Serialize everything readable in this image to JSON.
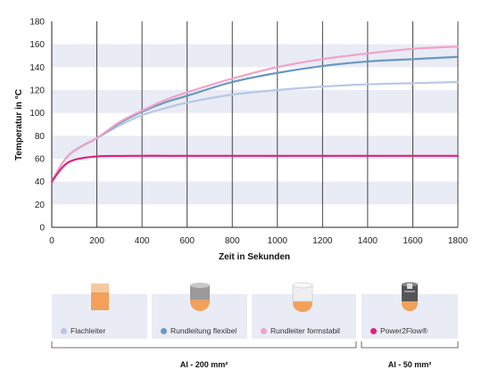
{
  "chart_data": {
    "type": "line",
    "xlabel": "Zeit in Sekunden",
    "ylabel": "Temperatur in °C",
    "xlim": [
      0,
      1800
    ],
    "ylim": [
      0,
      180
    ],
    "xticks": [
      0,
      200,
      400,
      600,
      800,
      1000,
      1200,
      1400,
      1600,
      1800
    ],
    "yticks": [
      0,
      20,
      40,
      60,
      80,
      100,
      120,
      140,
      160,
      180
    ],
    "grid": "vertical lines, horizontal bands",
    "x": [
      0,
      50,
      100,
      200,
      300,
      400,
      500,
      600,
      800,
      1000,
      1200,
      1400,
      1600,
      1800
    ],
    "series": [
      {
        "name": "Flachleiter",
        "color": "#b7c8e4",
        "values": [
          40,
          57,
          67,
          78,
          89,
          98,
          104,
          109,
          116,
          120,
          123,
          125,
          126,
          127
        ]
      },
      {
        "name": "Rundleitung flexibel",
        "color": "#6a98c0",
        "values": [
          40,
          57,
          67,
          78,
          91,
          101,
          109,
          115,
          127,
          135,
          141,
          145,
          147,
          149
        ]
      },
      {
        "name": "Rundleiter formstabil",
        "color": "#f0a2c8",
        "values": [
          40,
          57,
          67,
          78,
          92,
          102,
          111,
          118,
          130,
          140,
          147,
          152,
          156,
          158
        ]
      },
      {
        "name": "Power2Flow®",
        "color": "#e0207a",
        "values": [
          40,
          53,
          59,
          62,
          62.4,
          62.5,
          62.5,
          62.5,
          62.5,
          62.5,
          62.5,
          62.5,
          62.5,
          62.5
        ]
      }
    ]
  },
  "legend": {
    "items": [
      {
        "label": "Flachleiter",
        "color": "#b7c8e4",
        "icon": "flat-conductor-icon"
      },
      {
        "label": "Rundleitung flexibel",
        "color": "#6a98c0",
        "icon": "round-flexible-conductor-icon"
      },
      {
        "label": "Rundleiter formstabil",
        "color": "#f0a2c8",
        "icon": "round-rigid-conductor-icon"
      },
      {
        "label": "Power2Flow®",
        "color": "#e0207a",
        "icon": "power2flow-conductor-icon"
      }
    ],
    "group_left": "Al - 200 mm²",
    "group_right": "Al - 50 mm²"
  },
  "colors": {
    "band": "#e9ebf5",
    "grid": "#333333",
    "card_bg": "#e9ebf5",
    "copper": "#f2a05a"
  }
}
